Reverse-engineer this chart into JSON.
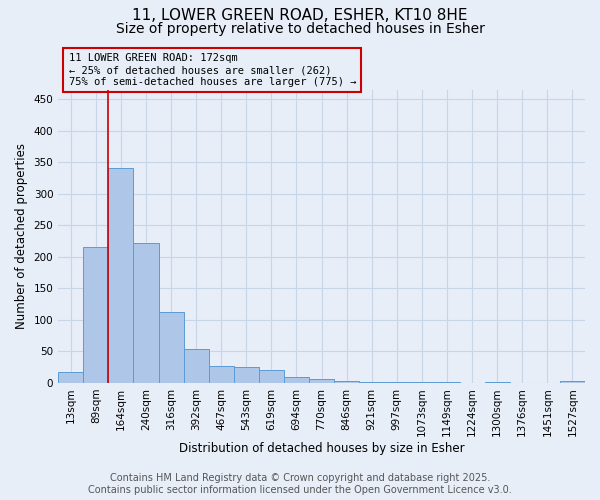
{
  "title_line1": "11, LOWER GREEN ROAD, ESHER, KT10 8HE",
  "title_line2": "Size of property relative to detached houses in Esher",
  "xlabel": "Distribution of detached houses by size in Esher",
  "ylabel": "Number of detached properties",
  "bar_labels": [
    "13sqm",
    "89sqm",
    "164sqm",
    "240sqm",
    "316sqm",
    "392sqm",
    "467sqm",
    "543sqm",
    "619sqm",
    "694sqm",
    "770sqm",
    "846sqm",
    "921sqm",
    "997sqm",
    "1073sqm",
    "1149sqm",
    "1224sqm",
    "1300sqm",
    "1376sqm",
    "1451sqm",
    "1527sqm"
  ],
  "bar_heights": [
    17,
    215,
    340,
    222,
    112,
    54,
    27,
    25,
    20,
    10,
    6,
    3,
    2,
    2,
    2,
    1,
    0,
    1,
    0,
    0,
    3
  ],
  "bar_color": "#aec6e8",
  "bar_edge_color": "#5b9bd5",
  "property_line_bar_index": 2,
  "property_line_color": "#cc0000",
  "annotation_text_line1": "11 LOWER GREEN ROAD: 172sqm",
  "annotation_text_line2": "← 25% of detached houses are smaller (262)",
  "annotation_text_line3": "75% of semi-detached houses are larger (775) →",
  "annotation_box_color": "#cc0000",
  "yticks": [
    0,
    50,
    100,
    150,
    200,
    250,
    300,
    350,
    400,
    450
  ],
  "ylim": [
    0,
    465
  ],
  "grid_color": "#c8d4e8",
  "background_color": "#e8eef8",
  "footer_line1": "Contains HM Land Registry data © Crown copyright and database right 2025.",
  "footer_line2": "Contains public sector information licensed under the Open Government Licence v3.0.",
  "title_fontsize": 11,
  "subtitle_fontsize": 10,
  "axis_label_fontsize": 8.5,
  "tick_fontsize": 7.5,
  "footer_fontsize": 7,
  "annotation_fontsize": 7.5
}
